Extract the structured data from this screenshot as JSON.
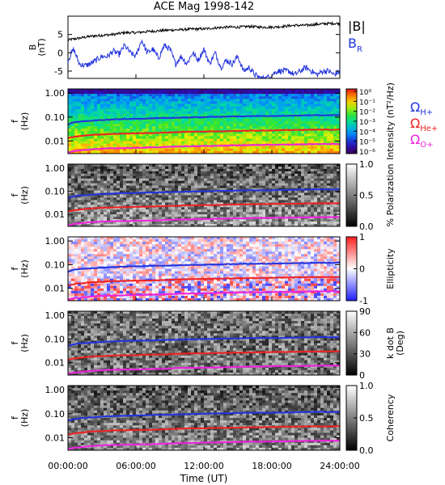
{
  "chart_data": {
    "type": "heatmap",
    "title": "ACE Mag 1998-142",
    "xlabel": "Time (UT)",
    "x_tick_labels": [
      "00:00:00",
      "06:00:00",
      "12:00:00",
      "18:00:00",
      "24:00:00"
    ],
    "x_ticks_hours": [
      0,
      6,
      12,
      18,
      24
    ],
    "xlim_hours": [
      0,
      24
    ],
    "line_panel": {
      "ylabel": "B\n(nT)",
      "ylim": [
        -7,
        10
      ],
      "y_ticks": [
        -5,
        0,
        5
      ],
      "legend": [
        {
          "label": "|B|",
          "color": "#000000"
        },
        {
          "label": "B",
          "sub": "R",
          "color": "#2233dd"
        }
      ],
      "series": [
        {
          "name": "|B|",
          "color": "#000000",
          "hours": [
            0,
            1,
            2,
            3,
            4,
            5,
            6,
            7,
            8,
            9,
            10,
            11,
            12,
            13,
            14,
            15,
            16,
            17,
            18,
            19,
            20,
            21,
            22,
            23,
            24
          ],
          "values": [
            3.5,
            4,
            4.5,
            4.8,
            5,
            5.5,
            5.5,
            5.8,
            6,
            6.2,
            6.3,
            6.5,
            6.5,
            6.8,
            7,
            7,
            7.2,
            7,
            7,
            7.2,
            7.5,
            7.5,
            7.8,
            8,
            8
          ]
        },
        {
          "name": "B_R",
          "color": "#2233dd",
          "hours": [
            0,
            0.5,
            1,
            1.5,
            2,
            2.5,
            3,
            3.5,
            4,
            4.5,
            5,
            5.5,
            6,
            6.5,
            7,
            7.5,
            8,
            8.5,
            9,
            9.5,
            10,
            10.5,
            11,
            11.5,
            12,
            12.5,
            13,
            13.5,
            14,
            14.5,
            15,
            15.5,
            16,
            16.5,
            17,
            17.5,
            18,
            18.5,
            19,
            19.5,
            20,
            20.5,
            21,
            21.5,
            22,
            22.5,
            23,
            23.5,
            24
          ],
          "values": [
            -2,
            1,
            -3,
            -3.5,
            -3,
            -2,
            -1,
            -1,
            0.5,
            -0.5,
            2,
            0,
            -1,
            3.5,
            0,
            1,
            -1.5,
            2,
            1,
            -3,
            -1,
            -3,
            0,
            -2,
            1,
            -3,
            0,
            -4,
            -2,
            -3,
            -1,
            -5,
            -4,
            -6,
            -7,
            -7,
            -6,
            -5,
            -5,
            -5,
            -6,
            -5,
            -4,
            -5,
            -6,
            -5,
            -5,
            -6,
            -5
          ]
        }
      ]
    },
    "spectrogram_panels": [
      {
        "name": "intensity",
        "ylabel": "f\n(Hz)",
        "colorbar_label": "Intensity (nT²/Hz)",
        "colorbar_ticks": [
          "10⁰",
          "10⁻¹",
          "10⁻²",
          "10⁻³",
          "10⁻⁴",
          "10⁻⁵",
          "10⁻⁶"
        ],
        "colormap": "rainbow"
      },
      {
        "name": "polarization",
        "ylabel": "f\n(Hz)",
        "colorbar_label": "% Polarization",
        "colorbar_ticks": [
          "0.0",
          "0.5",
          "1.0"
        ],
        "colormap": "gray"
      },
      {
        "name": "ellipticity",
        "ylabel": "f\n(Hz)",
        "colorbar_label": "Ellipticity",
        "colorbar_ticks": [
          "-1",
          "0",
          "1"
        ],
        "colormap": "blue-white-red"
      },
      {
        "name": "k-dot-b",
        "ylabel": "f\n(Hz)",
        "colorbar_label": "k dot B\n(Deg)",
        "colorbar_ticks": [
          "0",
          "30",
          "60",
          "90"
        ],
        "colormap": "gray"
      },
      {
        "name": "coherency",
        "ylabel": "f\n(Hz)",
        "colorbar_label": "Coherency",
        "colorbar_ticks": [
          "0.0",
          "0.5",
          "1.0"
        ],
        "colormap": "gray"
      }
    ],
    "f_tick_labels": [
      "1.00",
      "0.10",
      "0.01"
    ],
    "f_ticks": [
      1,
      0.1,
      0.01
    ],
    "f_range": [
      0.003,
      1.5
    ],
    "f_scale": "log",
    "gyrofrequency_legend": [
      {
        "symbol": "Ω",
        "sub": "H+",
        "color": "#2233dd"
      },
      {
        "symbol": "Ω",
        "sub": "He+",
        "color": "#ee2222"
      },
      {
        "symbol": "Ω",
        "sub": "O+",
        "color": "#ee22dd"
      }
    ],
    "gyrofrequency_lines": [
      {
        "name": "H+",
        "color": "#2233dd",
        "hours": [
          0,
          0.5,
          1,
          2,
          3,
          4,
          6,
          8,
          10,
          12,
          14,
          16,
          18,
          20,
          22,
          24
        ],
        "values": [
          0.05,
          0.06,
          0.065,
          0.07,
          0.075,
          0.08,
          0.085,
          0.09,
          0.095,
          0.1,
          0.105,
          0.11,
          0.11,
          0.115,
          0.12,
          0.12
        ]
      },
      {
        "name": "He+",
        "color": "#ee2222",
        "hours": [
          0,
          0.5,
          1,
          2,
          3,
          4,
          6,
          8,
          10,
          12,
          14,
          16,
          18,
          20,
          22,
          24
        ],
        "values": [
          0.013,
          0.015,
          0.016,
          0.018,
          0.019,
          0.02,
          0.021,
          0.022,
          0.024,
          0.025,
          0.026,
          0.027,
          0.028,
          0.029,
          0.03,
          0.03
        ]
      },
      {
        "name": "O+",
        "color": "#ee22dd",
        "hours": [
          0,
          0.5,
          1,
          2,
          3,
          4,
          6,
          8,
          10,
          12,
          14,
          16,
          18,
          20,
          22,
          24
        ],
        "values": [
          0.0033,
          0.0038,
          0.004,
          0.0045,
          0.0048,
          0.005,
          0.0052,
          0.0055,
          0.006,
          0.0062,
          0.0065,
          0.0068,
          0.007,
          0.0072,
          0.0075,
          0.0075
        ]
      }
    ]
  }
}
